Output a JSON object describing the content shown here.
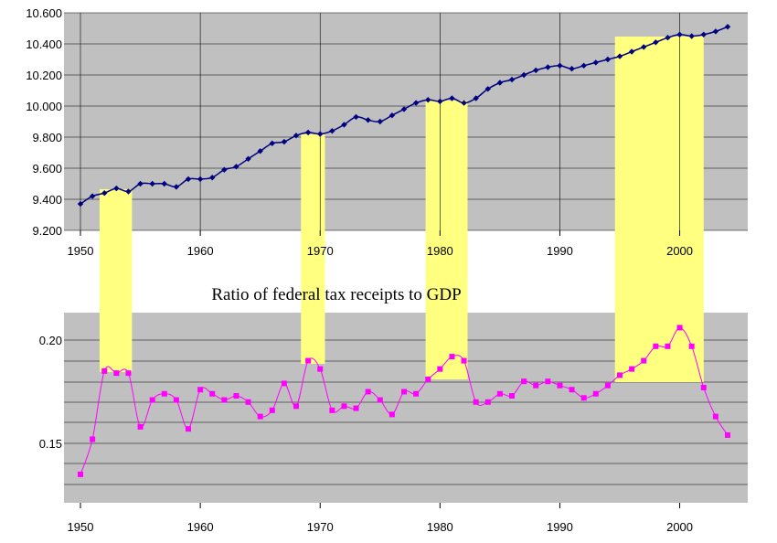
{
  "chart_data": [
    {
      "type": "line",
      "title": "",
      "xlabel": "",
      "ylabel": "",
      "xlim": [
        1950,
        2004
      ],
      "ylim": [
        9.2,
        10.6
      ],
      "x_ticks": [
        "1950",
        "1960",
        "1970",
        "1980",
        "1990",
        "2000"
      ],
      "y_ticks": [
        "9.200",
        "9.400",
        "9.600",
        "9.800",
        "10.000",
        "10.200",
        "10.400",
        "10.600"
      ],
      "grid": "horizontal",
      "series": [
        {
          "color": "#000080",
          "marker": "diamond",
          "x": [
            1950,
            1951,
            1952,
            1953,
            1954,
            1955,
            1956,
            1957,
            1958,
            1959,
            1960,
            1961,
            1962,
            1963,
            1964,
            1965,
            1966,
            1967,
            1968,
            1969,
            1970,
            1971,
            1972,
            1973,
            1974,
            1975,
            1976,
            1977,
            1978,
            1979,
            1980,
            1981,
            1982,
            1983,
            1984,
            1985,
            1986,
            1987,
            1988,
            1989,
            1990,
            1991,
            1992,
            1993,
            1994,
            1995,
            1996,
            1997,
            1998,
            1999,
            2000,
            2001,
            2002,
            2003,
            2004
          ],
          "values": [
            9.37,
            9.42,
            9.44,
            9.47,
            9.45,
            9.5,
            9.5,
            9.5,
            9.48,
            9.53,
            9.53,
            9.54,
            9.59,
            9.61,
            9.66,
            9.71,
            9.76,
            9.77,
            9.81,
            9.83,
            9.82,
            9.84,
            9.88,
            9.93,
            9.91,
            9.9,
            9.94,
            9.98,
            10.02,
            10.04,
            10.03,
            10.05,
            10.02,
            10.05,
            10.11,
            10.15,
            10.17,
            10.2,
            10.23,
            10.25,
            10.26,
            10.24,
            10.26,
            10.28,
            10.3,
            10.32,
            10.35,
            10.38,
            10.41,
            10.44,
            10.46,
            10.45,
            10.46,
            10.48,
            10.51
          ]
        }
      ],
      "highlight_periods": [
        [
          1951.6,
          1954.3
        ],
        [
          1968.4,
          1970.4
        ],
        [
          1978.8,
          1982.3
        ],
        [
          1994.6,
          2002.0
        ]
      ],
      "highlight_color": "#ffff80",
      "plot_background": "#c0c0c0"
    },
    {
      "type": "line",
      "title": "Ratio of federal tax receipts to GDP",
      "xlabel": "",
      "ylabel": "",
      "xlim": [
        1950,
        2004
      ],
      "ylim": [
        0.118,
        0.213
      ],
      "x_ticks": [
        "1950",
        "1960",
        "1970",
        "1980",
        "1990",
        "2000"
      ],
      "y_ticks": [
        "0.15",
        "0.20"
      ],
      "grid": "horizontal",
      "series": [
        {
          "color": "#ff00ff",
          "marker": "square",
          "x": [
            1950,
            1951,
            1952,
            1953,
            1954,
            1955,
            1956,
            1957,
            1958,
            1959,
            1960,
            1961,
            1962,
            1963,
            1964,
            1965,
            1966,
            1967,
            1968,
            1969,
            1970,
            1971,
            1972,
            1973,
            1974,
            1975,
            1976,
            1977,
            1978,
            1979,
            1980,
            1981,
            1982,
            1983,
            1984,
            1985,
            1986,
            1987,
            1988,
            1989,
            1990,
            1991,
            1992,
            1993,
            1994,
            1995,
            1996,
            1997,
            1998,
            1999,
            2000,
            2001,
            2002,
            2003,
            2004
          ],
          "values": [
            0.135,
            0.152,
            0.185,
            0.184,
            0.184,
            0.158,
            0.171,
            0.174,
            0.171,
            0.157,
            0.176,
            0.174,
            0.171,
            0.173,
            0.17,
            0.163,
            0.166,
            0.179,
            0.168,
            0.19,
            0.186,
            0.166,
            0.168,
            0.167,
            0.175,
            0.171,
            0.164,
            0.175,
            0.174,
            0.181,
            0.186,
            0.192,
            0.19,
            0.17,
            0.17,
            0.174,
            0.173,
            0.18,
            0.178,
            0.18,
            0.178,
            0.176,
            0.172,
            0.174,
            0.178,
            0.183,
            0.186,
            0.19,
            0.197,
            0.197,
            0.206,
            0.197,
            0.177,
            0.163,
            0.154
          ]
        }
      ],
      "highlight_periods": [
        [
          1951.6,
          1954.3
        ],
        [
          1968.4,
          1970.4
        ],
        [
          1978.8,
          1982.3
        ],
        [
          1994.6,
          2002.0
        ]
      ],
      "highlight_color": "#ffff80",
      "plot_background": "#c0c0c0"
    }
  ]
}
